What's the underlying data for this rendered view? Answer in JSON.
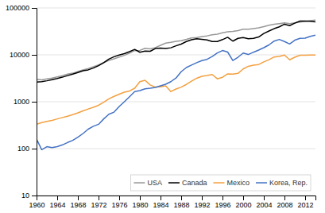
{
  "chart_data": {
    "type": "line",
    "x": [
      1960,
      1961,
      1962,
      1963,
      1964,
      1965,
      1966,
      1967,
      1968,
      1969,
      1970,
      1971,
      1972,
      1973,
      1974,
      1975,
      1976,
      1977,
      1978,
      1979,
      1980,
      1981,
      1982,
      1983,
      1984,
      1985,
      1986,
      1987,
      1988,
      1989,
      1990,
      1991,
      1992,
      1993,
      1994,
      1995,
      1996,
      1997,
      1998,
      1999,
      2000,
      2001,
      2002,
      2003,
      2004,
      2005,
      2006,
      2007,
      2008,
      2009,
      2010,
      2011,
      2012,
      2013,
      2014
    ],
    "series": [
      {
        "name": "USA",
        "color": "#999999",
        "values": [
          3010,
          2930,
          3060,
          3190,
          3380,
          3600,
          3870,
          4060,
          4410,
          4790,
          5120,
          5560,
          6120,
          6840,
          7570,
          8210,
          8940,
          9770,
          10890,
          12310,
          12450,
          13820,
          13380,
          14250,
          16000,
          17750,
          18470,
          19430,
          20030,
          21340,
          22890,
          23450,
          24440,
          25380,
          26840,
          27640,
          29420,
          31090,
          31530,
          32960,
          35080,
          35100,
          36250,
          37570,
          40120,
          42630,
          44830,
          46450,
          48170,
          46360,
          48070,
          49870,
          51470,
          53400,
          54960
        ]
      },
      {
        "name": "Canada",
        "color": "#000000",
        "values": [
          2630,
          2690,
          2800,
          2960,
          3120,
          3340,
          3610,
          3870,
          4210,
          4590,
          4780,
          5230,
          5870,
          6820,
          8090,
          9110,
          9900,
          10610,
          11710,
          13060,
          11340,
          12070,
          11910,
          13600,
          13940,
          13700,
          14140,
          15600,
          16920,
          19250,
          21010,
          21980,
          21460,
          20720,
          19250,
          19280,
          21140,
          23680,
          19610,
          22500,
          23310,
          22100,
          22490,
          24050,
          28500,
          32200,
          36170,
          39520,
          45070,
          41980,
          47470,
          52390,
          52450,
          52200,
          50620
        ]
      },
      {
        "name": "Mexico",
        "color": "#f4a040",
        "values": [
          330,
          360,
          380,
          400,
          430,
          460,
          490,
          530,
          580,
          640,
          700,
          760,
          840,
          980,
          1150,
          1300,
          1450,
          1600,
          1700,
          1940,
          2680,
          2870,
          2280,
          2050,
          2080,
          2180,
          1650,
          1870,
          2050,
          2340,
          2750,
          3170,
          3490,
          3620,
          3800,
          3080,
          3330,
          3930,
          3870,
          4020,
          5000,
          5690,
          6010,
          6210,
          7080,
          7870,
          9000,
          9280,
          9890,
          7830,
          8900,
          9780,
          9830,
          9910,
          9860
        ]
      },
      {
        "name": "Korea, Rep.",
        "color": "#4472c4",
        "values": [
          160,
          95,
          110,
          105,
          110,
          120,
          135,
          150,
          175,
          210,
          260,
          300,
          330,
          430,
          540,
          600,
          790,
          1000,
          1280,
          1640,
          1730,
          1880,
          1940,
          2020,
          2190,
          2360,
          2680,
          3200,
          4370,
          5350,
          6040,
          6790,
          7530,
          8020,
          9210,
          10940,
          12360,
          11470,
          7560,
          8890,
          10920,
          10160,
          11380,
          12630,
          14210,
          16290,
          19640,
          21320,
          19250,
          17040,
          20540,
          22420,
          22670,
          24840,
          26220
        ]
      }
    ],
    "xlim": [
      1960,
      2014
    ],
    "ylim": [
      10,
      100000
    ],
    "xticks": [
      1960,
      1964,
      1968,
      1972,
      1976,
      1980,
      1984,
      1988,
      1992,
      1996,
      2000,
      2004,
      2008,
      2012
    ],
    "yticks": [
      10,
      100,
      1000,
      10000,
      100000
    ],
    "log": "y",
    "grid": "y",
    "legend": "lower right"
  }
}
